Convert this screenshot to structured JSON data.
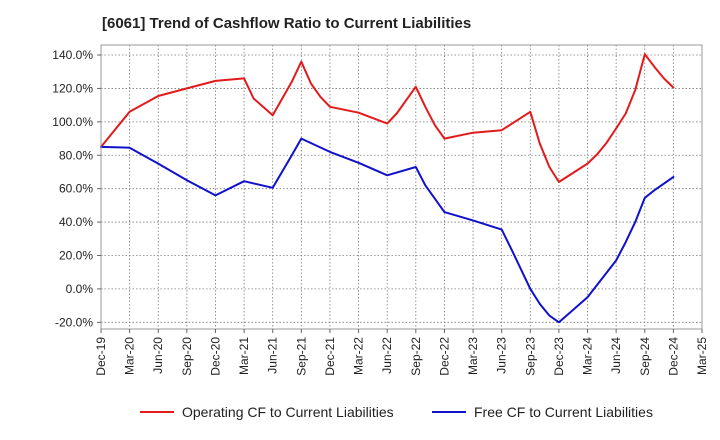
{
  "title": "[6061]  Trend of Cashflow Ratio to Current Liabilities",
  "colors": {
    "operating": "#e31a1c",
    "free": "#1111cc",
    "grid": "#7a7a7a",
    "plot_border": "#999999"
  },
  "chart_data": {
    "type": "line",
    "title": "[6061]  Trend of Cashflow Ratio to Current Liabilities",
    "xlabel": "",
    "ylabel": "",
    "x": [
      "Dec-19",
      "Mar-20",
      "Jun-20",
      "Sep-20",
      "Dec-20",
      "Mar-21",
      "Jun-21",
      "Sep-21",
      "Dec-21",
      "Mar-22",
      "Jun-22",
      "Sep-22",
      "Dec-22",
      "Mar-23",
      "Jun-23",
      "Sep-23",
      "Dec-23",
      "Mar-24",
      "Jun-24",
      "Sep-24",
      "Dec-24",
      "Mar-25"
    ],
    "xlim_index": [
      0,
      21
    ],
    "ylim": [
      -24,
      146
    ],
    "y_ticks": [
      -20,
      0,
      20,
      40,
      60,
      80,
      100,
      120,
      140
    ],
    "y_tick_labels": [
      "-20.0%",
      "0.0%",
      "20.0%",
      "40.0%",
      "60.0%",
      "80.0%",
      "100.0%",
      "120.0%",
      "140.0%"
    ],
    "grid": true,
    "legend_position": "bottom",
    "series": [
      {
        "name": "Operating CF to Current Liabilities",
        "color": "#e31a1c",
        "points": [
          [
            0,
            85
          ],
          [
            1,
            106
          ],
          [
            2,
            115.5
          ],
          [
            3,
            120
          ],
          [
            4,
            124.5
          ],
          [
            5,
            126
          ],
          [
            5.333,
            114
          ],
          [
            6,
            104
          ],
          [
            6.667,
            124
          ],
          [
            7,
            136
          ],
          [
            7.333,
            123
          ],
          [
            7.667,
            115
          ],
          [
            8,
            109
          ],
          [
            9,
            105.5
          ],
          [
            10,
            99
          ],
          [
            10.333,
            105
          ],
          [
            10.667,
            113
          ],
          [
            11,
            121
          ],
          [
            11.333,
            109
          ],
          [
            11.667,
            98
          ],
          [
            12,
            90
          ],
          [
            13,
            93.5
          ],
          [
            14,
            95
          ],
          [
            15,
            106
          ],
          [
            15.333,
            87
          ],
          [
            15.667,
            73
          ],
          [
            16,
            64
          ],
          [
            17,
            75
          ],
          [
            17.333,
            80.5
          ],
          [
            17.667,
            87.5
          ],
          [
            18,
            96
          ],
          [
            18.333,
            105
          ],
          [
            18.667,
            119
          ],
          [
            19,
            140.5
          ],
          [
            19.333,
            133
          ],
          [
            19.667,
            126
          ],
          [
            20,
            120.5
          ]
        ]
      },
      {
        "name": "Free CF to Current Liabilities",
        "color": "#1111cc",
        "points": [
          [
            0,
            85
          ],
          [
            1,
            84.5
          ],
          [
            2,
            75
          ],
          [
            3,
            65
          ],
          [
            4,
            56
          ],
          [
            5,
            64.5
          ],
          [
            6,
            60.5
          ],
          [
            6.667,
            80
          ],
          [
            7,
            90
          ],
          [
            8,
            82
          ],
          [
            9,
            75.5
          ],
          [
            10,
            68
          ],
          [
            11,
            73
          ],
          [
            11.333,
            62
          ],
          [
            11.667,
            54
          ],
          [
            12,
            46
          ],
          [
            13,
            41
          ],
          [
            14,
            35.5
          ],
          [
            14.333,
            24
          ],
          [
            14.667,
            12
          ],
          [
            15,
            0
          ],
          [
            15.333,
            -9
          ],
          [
            15.667,
            -16
          ],
          [
            16,
            -20
          ],
          [
            16.333,
            -15
          ],
          [
            17,
            -5
          ],
          [
            18,
            17
          ],
          [
            18.333,
            28
          ],
          [
            18.667,
            40
          ],
          [
            19,
            54.5
          ],
          [
            19.333,
            59
          ],
          [
            20,
            67
          ]
        ]
      }
    ]
  }
}
